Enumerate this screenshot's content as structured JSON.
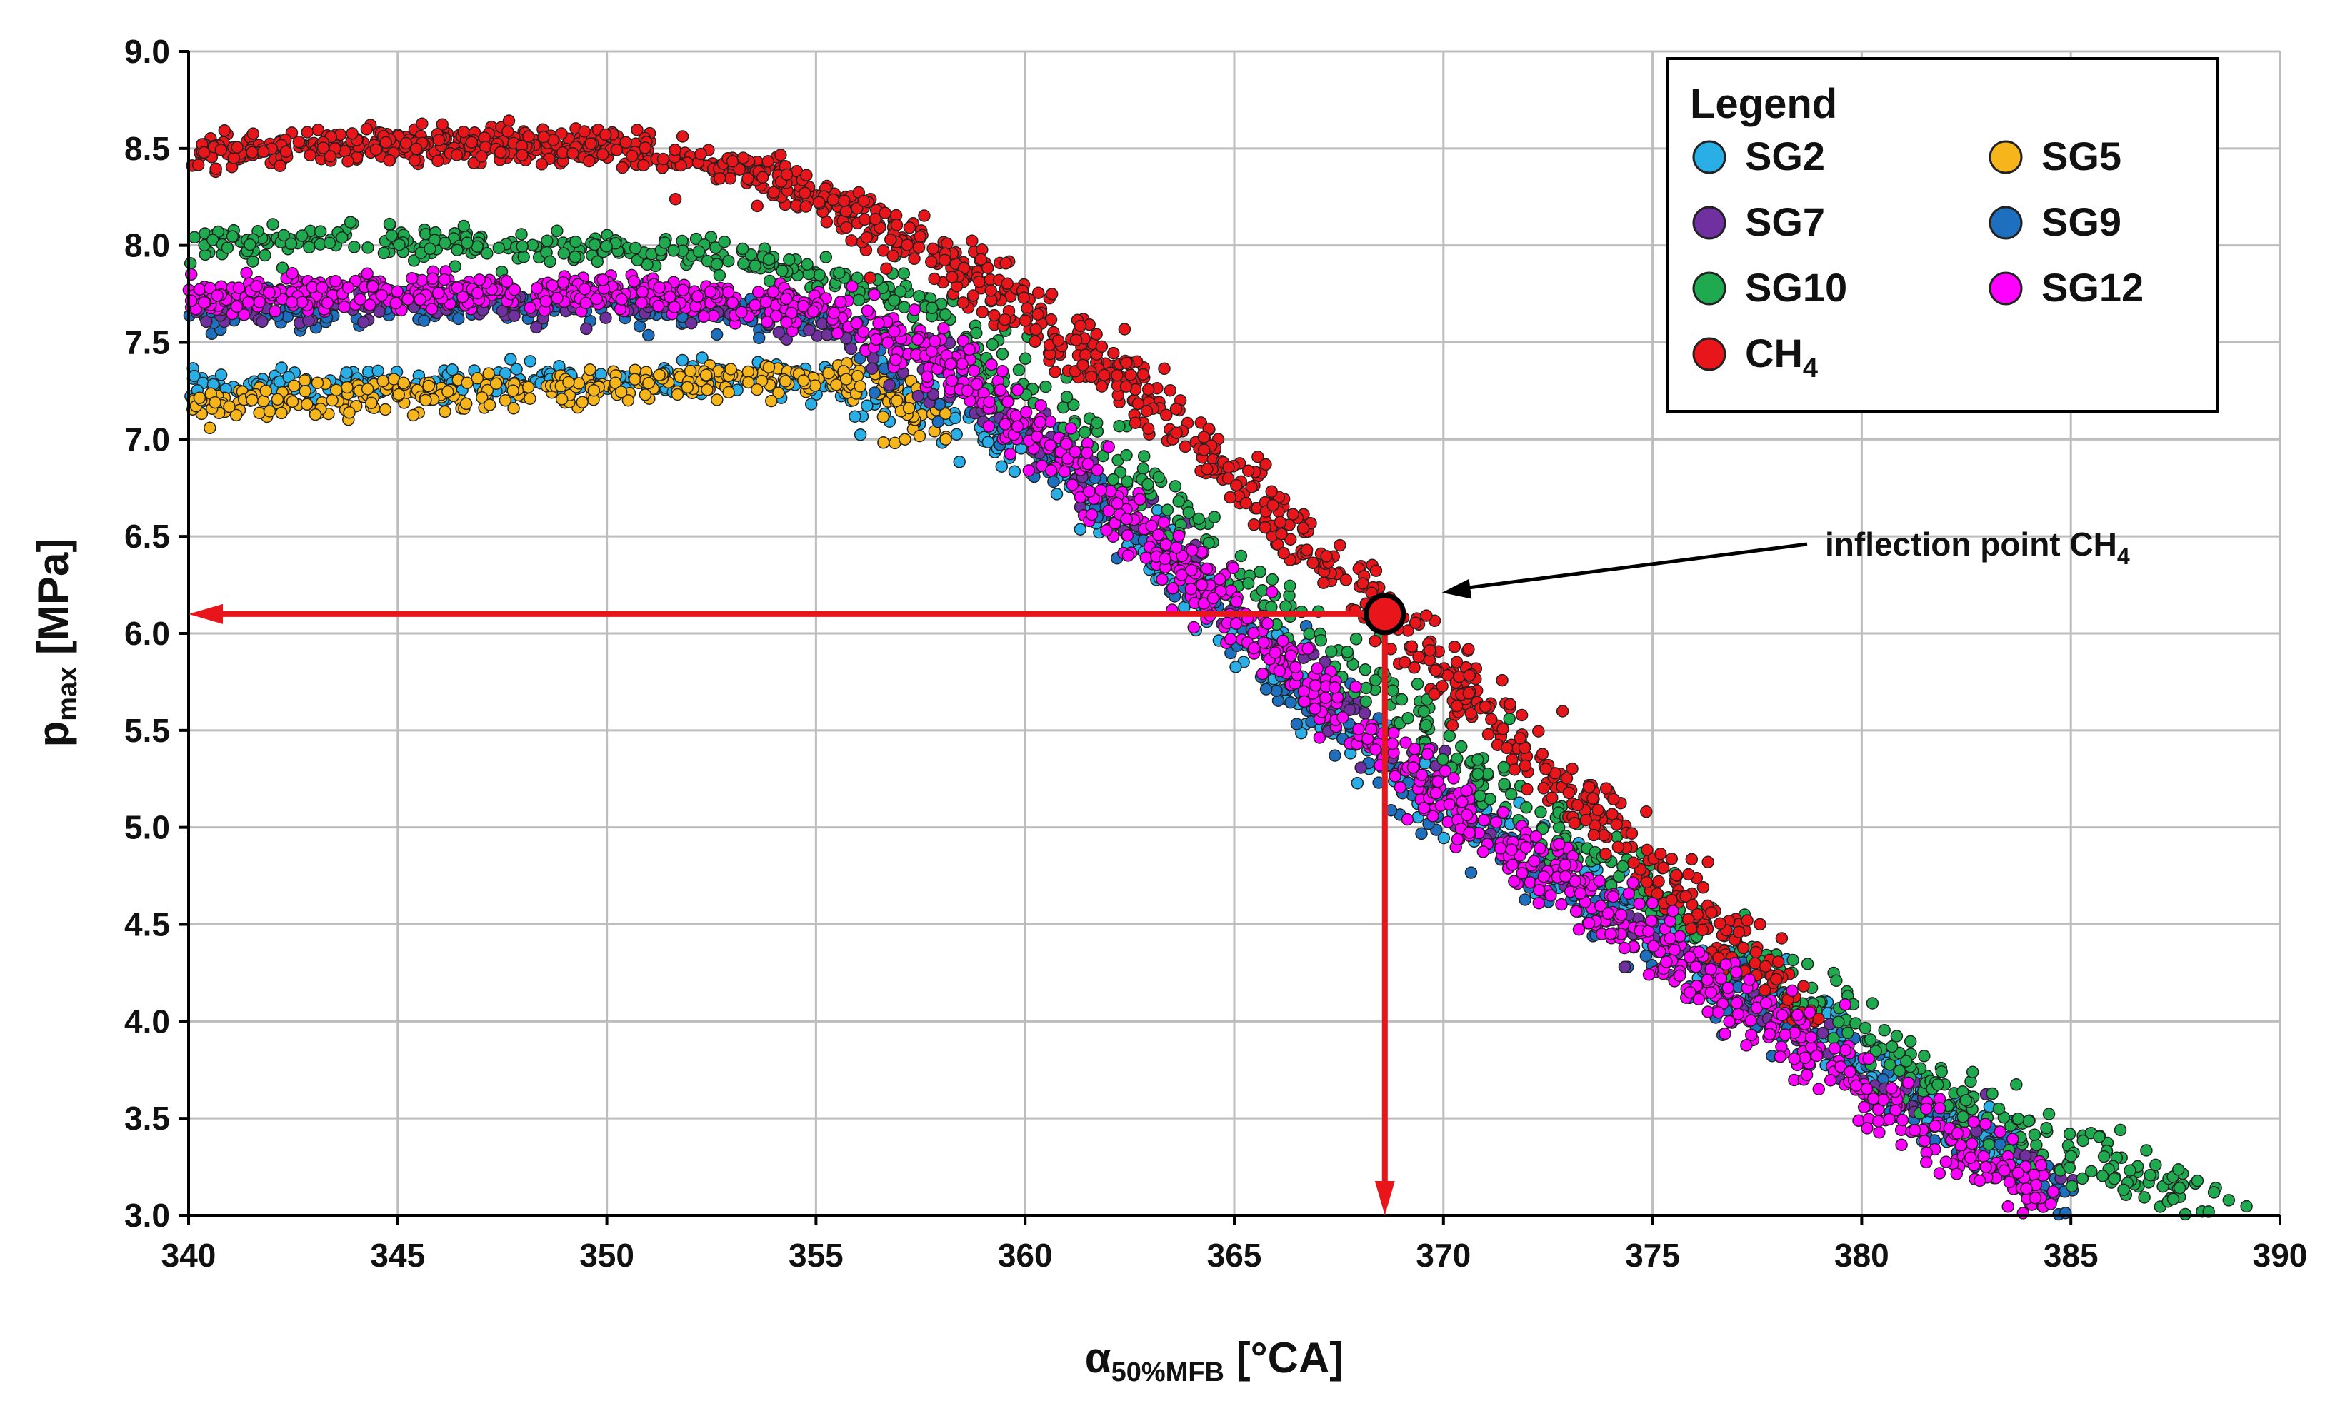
{
  "chart_data": {
    "type": "scatter",
    "title": "",
    "xlabel": {
      "main": "α",
      "sub": "50%MFB",
      "unit": " [°CA]"
    },
    "ylabel": {
      "main": "p",
      "sub": "max",
      "unit": " [MPa]"
    },
    "xlim": [
      340,
      390
    ],
    "ylim": [
      3.0,
      9.0
    ],
    "xticks": [
      "340",
      "345",
      "350",
      "355",
      "360",
      "365",
      "370",
      "375",
      "380",
      "385",
      "390"
    ],
    "yticks": [
      "3.0",
      "3.5",
      "4.0",
      "4.5",
      "5.0",
      "5.5",
      "6.0",
      "6.5",
      "7.0",
      "7.5",
      "8.0",
      "8.5",
      "9.0"
    ],
    "grid": true,
    "legend": {
      "title": "Legend",
      "position": "top-right",
      "entries": [
        {
          "label": "SG2",
          "series": "SG2"
        },
        {
          "label": "SG5",
          "series": "SG5"
        },
        {
          "label": "SG7",
          "series": "SG7"
        },
        {
          "label": "SG9",
          "series": "SG9"
        },
        {
          "label": "SG10",
          "series": "SG10"
        },
        {
          "label": "SG12",
          "series": "SG12"
        },
        {
          "label": "CH",
          "sub": "4",
          "series": "CH4"
        }
      ]
    },
    "series": [
      {
        "name": "SG2",
        "color": "#29aee6",
        "curve_x": [
          340,
          350,
          354,
          357,
          360,
          363,
          366,
          369,
          372,
          376,
          380,
          384
        ],
        "curve_y": [
          7.27,
          7.3,
          7.33,
          7.22,
          6.95,
          6.45,
          5.85,
          5.3,
          4.9,
          4.4,
          3.8,
          3.25
        ]
      },
      {
        "name": "SG5",
        "color": "#f5b51b",
        "curve_x": [
          340,
          345,
          350,
          354,
          356,
          358
        ],
        "curve_y": [
          7.18,
          7.22,
          7.27,
          7.32,
          7.28,
          7.1
        ]
      },
      {
        "name": "SG7",
        "color": "#7030a0",
        "curve_x": [
          340,
          350,
          355,
          358,
          361,
          364,
          367,
          370,
          374,
          378,
          382,
          385
        ],
        "curve_y": [
          7.65,
          7.7,
          7.62,
          7.35,
          6.9,
          6.35,
          5.75,
          5.2,
          4.6,
          4.0,
          3.45,
          3.1
        ]
      },
      {
        "name": "SG9",
        "color": "#1f6fbf",
        "curve_x": [
          340,
          350,
          355,
          358,
          361,
          364,
          367,
          370,
          374,
          378,
          382,
          385
        ],
        "curve_y": [
          7.66,
          7.7,
          7.62,
          7.35,
          6.85,
          6.25,
          5.65,
          5.05,
          4.55,
          4.0,
          3.45,
          3.1
        ]
      },
      {
        "name": "SG10",
        "color": "#1faa50",
        "curve_x": [
          340,
          345,
          350,
          355,
          358,
          361,
          364,
          367,
          370,
          373,
          376,
          379,
          382,
          385,
          389
        ],
        "curve_y": [
          8.02,
          8.02,
          7.99,
          7.88,
          7.6,
          7.1,
          6.55,
          5.95,
          5.45,
          4.95,
          4.5,
          4.05,
          3.65,
          3.3,
          3.02
        ]
      },
      {
        "name": "SG12",
        "color": "#ff00ff",
        "curve_x": [
          340,
          345,
          350,
          355,
          358,
          361,
          364,
          367,
          370,
          373,
          376,
          379,
          382,
          384.5
        ],
        "curve_y": [
          7.74,
          7.76,
          7.76,
          7.68,
          7.4,
          6.9,
          6.3,
          5.7,
          5.15,
          4.7,
          4.25,
          3.8,
          3.4,
          3.1
        ]
      },
      {
        "name": "CH4",
        "color": "#e8161b",
        "curve_x": [
          340,
          345,
          350,
          354,
          358,
          362,
          366,
          368.6,
          371,
          374,
          377,
          379
        ],
        "curve_y": [
          8.48,
          8.52,
          8.52,
          8.35,
          7.95,
          7.35,
          6.65,
          6.1,
          5.6,
          5.0,
          4.4,
          4.0
        ]
      }
    ],
    "inflection_point": {
      "x": 368.6,
      "y": 6.1,
      "label": "inflection point CH",
      "label_sub": "4"
    },
    "markers": {
      "border": "#1a1a1a",
      "arrow_color": "#e8161b"
    }
  }
}
